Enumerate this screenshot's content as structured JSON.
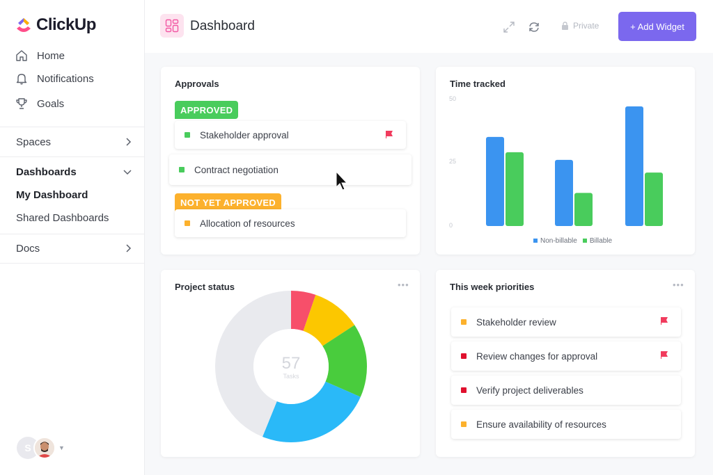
{
  "app": {
    "name": "ClickUp"
  },
  "sidebar": {
    "nav": [
      {
        "label": "Home",
        "icon": "home-icon"
      },
      {
        "label": "Notifications",
        "icon": "bell-icon"
      },
      {
        "label": "Goals",
        "icon": "trophy-icon"
      }
    ],
    "spaces_label": "Spaces",
    "dashboards_label": "Dashboards",
    "dashboards_items": [
      "My Dashboard",
      "Shared Dashboards"
    ],
    "docs_label": "Docs",
    "avatar_initial": "S"
  },
  "header": {
    "title": "Dashboard",
    "private_label": "Private",
    "add_widget_label": "+ Add Widget"
  },
  "approvals": {
    "title": "Approvals",
    "approved_label": "APPROVED",
    "not_approved_label": "NOT YET APPROVED",
    "tasks": [
      {
        "label": "Stakeholder approval",
        "color": "#49cc5c",
        "flag": true
      },
      {
        "label": "Contract negotiation",
        "color": "#49cc5c",
        "flag": false
      },
      {
        "label": "Allocation of resources",
        "color": "#fcb12d",
        "flag": false
      }
    ]
  },
  "time_tracked": {
    "title": "Time tracked",
    "legend": [
      "Non-billable",
      "Billable"
    ]
  },
  "chart_data": {
    "type": "bar",
    "title": "Time tracked",
    "categories": [
      "",
      "",
      ""
    ],
    "y_ticks": [
      "50",
      "25",
      "0"
    ],
    "ylim": [
      0,
      50
    ],
    "series": [
      {
        "name": "Non-billable",
        "color": "#3b94f0",
        "values": [
          35,
          26,
          47
        ]
      },
      {
        "name": "Billable",
        "color": "#49cc5c",
        "values": [
          29,
          13,
          21
        ]
      }
    ],
    "legend_position": "bottom"
  },
  "project_status": {
    "title": "Project status",
    "count": "57",
    "count_label": "Tasks",
    "segments": [
      {
        "color": "#f74f6a",
        "value": 3
      },
      {
        "color": "#fcc700",
        "value": 6
      },
      {
        "color": "#49cc3d",
        "value": 9
      },
      {
        "color": "#2ab9f8",
        "value": 14
      },
      {
        "color": "#e9eaee",
        "value": 25
      }
    ]
  },
  "priorities": {
    "title": "This week priorities",
    "items": [
      {
        "label": "Stakeholder review",
        "color": "#fcb12d",
        "flag": true
      },
      {
        "label": "Review changes for approval",
        "color": "#e0102e",
        "flag": true
      },
      {
        "label": "Verify project deliverables",
        "color": "#e0102e",
        "flag": false
      },
      {
        "label": "Ensure availability of resources",
        "color": "#fcb12d",
        "flag": false
      }
    ]
  },
  "colors": {
    "accent": "#7b68ee",
    "approved": "#49cc5c",
    "not_approved": "#fcb12d",
    "flag": "#f13b5d"
  }
}
